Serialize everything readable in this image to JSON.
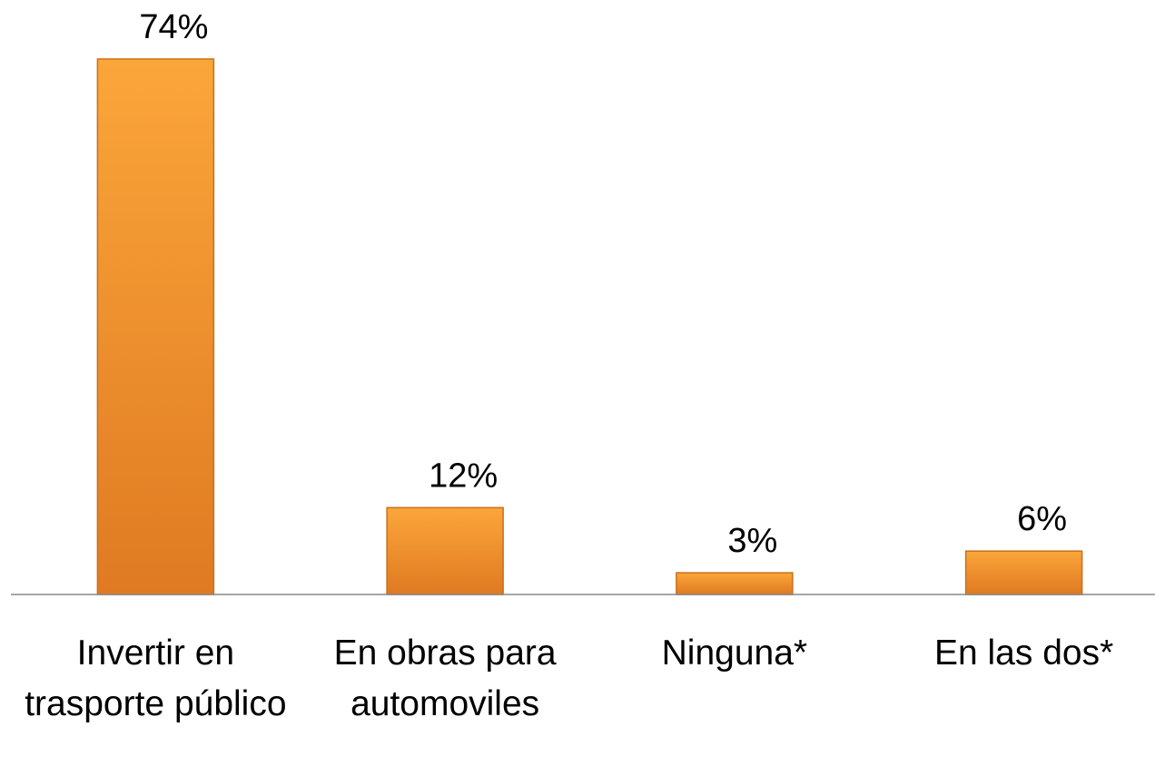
{
  "chart_data": {
    "type": "bar",
    "categories": [
      "Invertir en trasporte público",
      "En obras para automoviles",
      "Ninguna*",
      "En las dos*"
    ],
    "values": [
      74,
      12,
      3,
      6
    ],
    "value_labels": [
      "74%",
      "12%",
      "3%",
      "6%"
    ],
    "color": "#f0902a"
  }
}
